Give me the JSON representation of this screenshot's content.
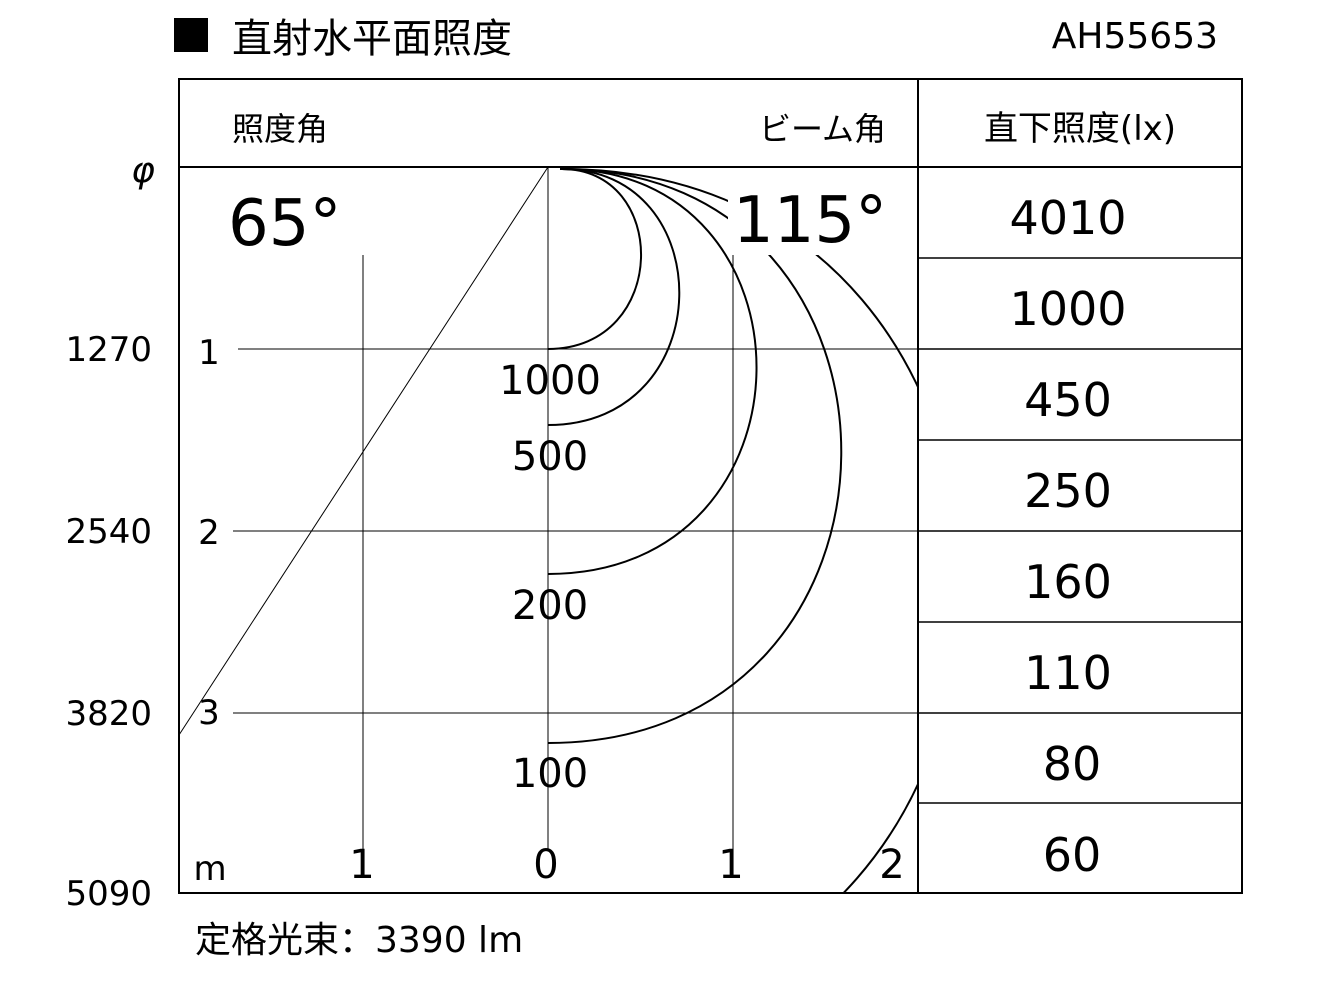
{
  "title": "直射水平面照度",
  "model": "AH55653",
  "header": {
    "illum_angle_label": "照度角",
    "beam_angle_label": "ビーム角",
    "direct_label": "直下照度(lx)"
  },
  "phi_symbol": "φ",
  "illum_angle": "65°",
  "beam_angle": "115°",
  "diameters": [
    "1270",
    "2540",
    "3820",
    "5090"
  ],
  "depth_ticks": [
    "1",
    "2",
    "3"
  ],
  "x_unit": "m",
  "x_ticks": [
    "1",
    "0",
    "1",
    "2"
  ],
  "contours": [
    {
      "label": "1000"
    },
    {
      "label": "500"
    },
    {
      "label": "200"
    },
    {
      "label": "100"
    }
  ],
  "direct_illuminance": [
    "4010",
    "1000",
    "450",
    "250",
    "160",
    "110",
    "80",
    "60"
  ],
  "footer": "定格光束：3390 lm"
}
